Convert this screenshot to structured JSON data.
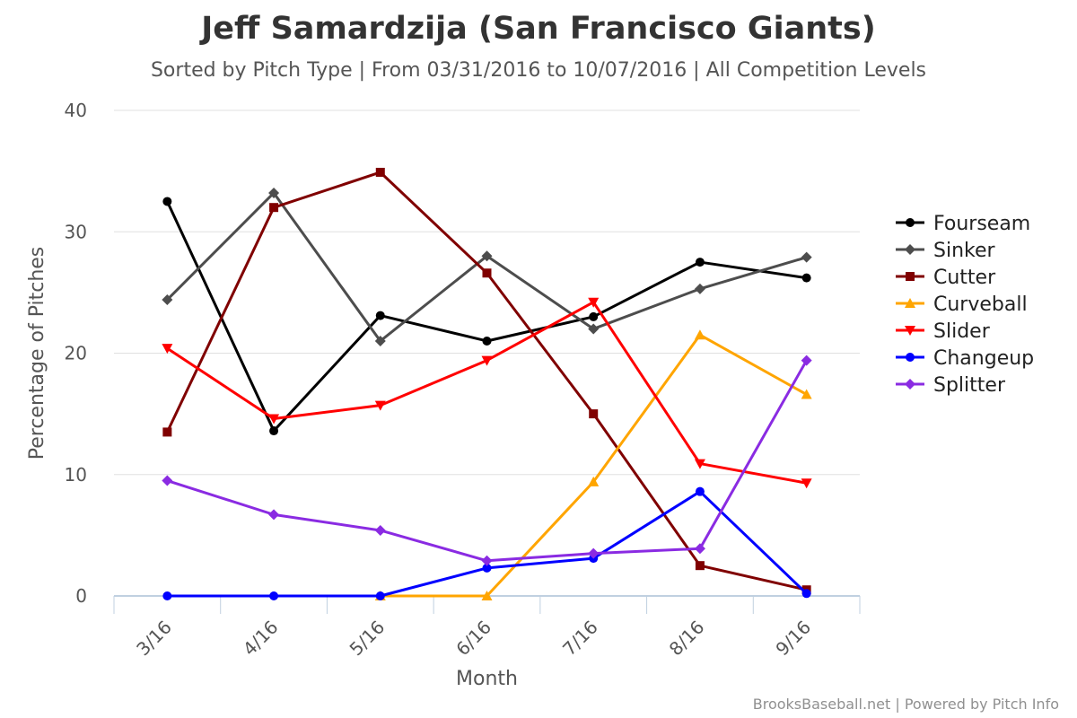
{
  "title": "Jeff Samardzija (San Francisco Giants)",
  "subtitle": "Sorted by Pitch Type | From 03/31/2016 to 10/07/2016 | All Competition Levels",
  "credits": "BrooksBaseball.net | Powered by Pitch Info",
  "chart_data": {
    "type": "line",
    "categories": [
      "3/16",
      "4/16",
      "5/16",
      "6/16",
      "7/16",
      "8/16",
      "9/16"
    ],
    "xlabel": "Month",
    "ylabel": "Percentage of Pitches",
    "ylim": [
      0,
      40
    ],
    "yticks": [
      0,
      10,
      20,
      30,
      40
    ],
    "grid": true,
    "legend_position": "right",
    "series": [
      {
        "name": "Fourseam",
        "color": "#000000",
        "marker": "circle",
        "values": [
          32.5,
          13.6,
          23.1,
          21.0,
          23.0,
          27.5,
          26.2
        ]
      },
      {
        "name": "Sinker",
        "color": "#4d4d4d",
        "marker": "diamond",
        "values": [
          24.4,
          33.2,
          21.0,
          28.0,
          22.0,
          25.3,
          27.9
        ]
      },
      {
        "name": "Cutter",
        "color": "#800000",
        "marker": "square",
        "values": [
          13.5,
          32.0,
          34.9,
          26.6,
          15.0,
          2.5,
          0.5
        ]
      },
      {
        "name": "Curveball",
        "color": "#ffa500",
        "marker": "triangle",
        "values": [
          null,
          null,
          0,
          0,
          9.4,
          21.5,
          16.6
        ]
      },
      {
        "name": "Slider",
        "color": "#ff0000",
        "marker": "triangle-down",
        "values": [
          20.4,
          14.6,
          15.7,
          19.4,
          24.2,
          10.9,
          9.3
        ]
      },
      {
        "name": "Changeup",
        "color": "#0000ff",
        "marker": "circle",
        "values": [
          0,
          0,
          0,
          2.3,
          3.1,
          8.6,
          0.2
        ]
      },
      {
        "name": "Splitter",
        "color": "#8a2be2",
        "marker": "diamond",
        "values": [
          9.5,
          6.7,
          5.4,
          2.9,
          3.5,
          3.9,
          19.4
        ]
      }
    ]
  }
}
